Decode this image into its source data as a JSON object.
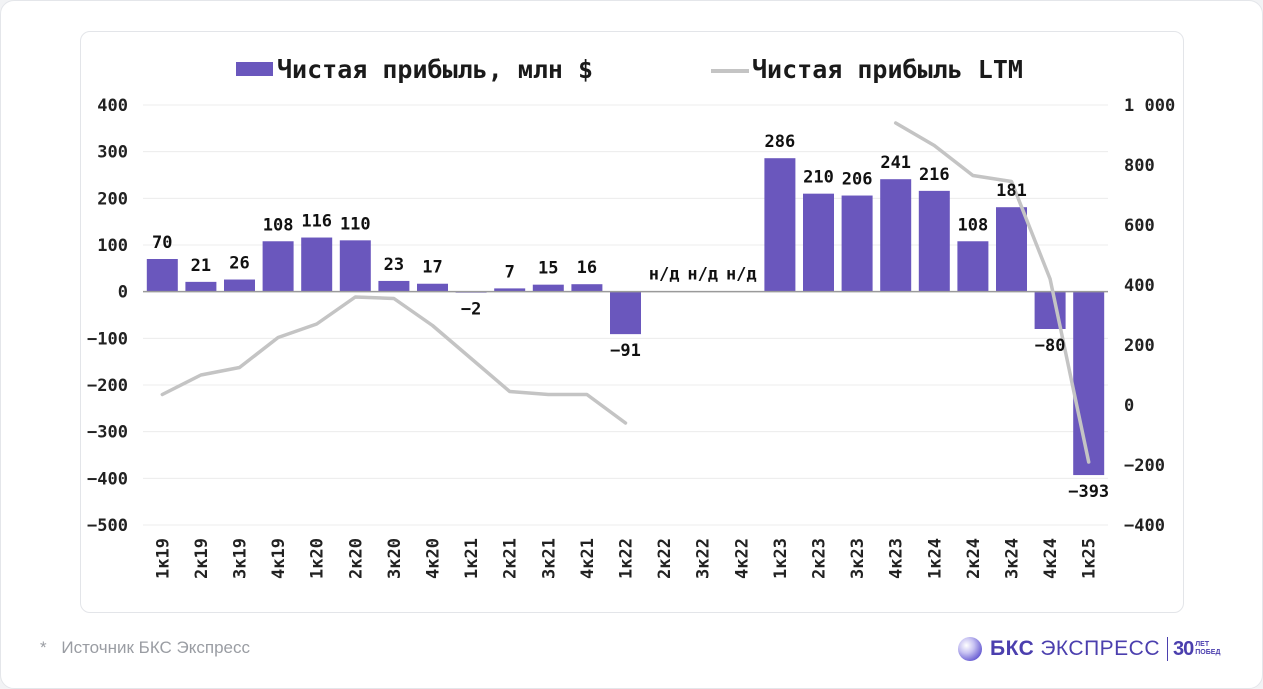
{
  "chart_data": {
    "type": "bar",
    "categories": [
      "1к19",
      "2к19",
      "3к19",
      "4к19",
      "1к20",
      "2к20",
      "3к20",
      "4к20",
      "1к21",
      "2к21",
      "3к21",
      "4к21",
      "1к22",
      "2к22",
      "3к22",
      "4к22",
      "1к23",
      "2к23",
      "3к23",
      "4к23",
      "1к24",
      "2к24",
      "3к24",
      "4к24",
      "1к25"
    ],
    "series": [
      {
        "name": "Чистая прибыль, млн $",
        "kind": "bar",
        "axis": "left",
        "color": "#6a57bd",
        "values": [
          70,
          21,
          26,
          108,
          116,
          110,
          23,
          17,
          -2,
          7,
          15,
          16,
          -91,
          null,
          null,
          null,
          286,
          210,
          206,
          241,
          216,
          108,
          181,
          -80,
          -393
        ],
        "labels": [
          "70",
          "21",
          "26",
          "108",
          "116",
          "110",
          "23",
          "17",
          "-2",
          "7",
          "15",
          "16",
          "-91",
          "н/д",
          "н/д",
          "н/д",
          "286",
          "210",
          "206",
          "241",
          "216",
          "108",
          "181",
          "-80",
          "-393"
        ]
      },
      {
        "name": "Чистая прибыль LTM",
        "kind": "line",
        "axis": "right",
        "color": "#c4c4c4",
        "values": [
          35,
          100,
          125,
          225,
          270,
          360,
          355,
          265,
          155,
          45,
          35,
          35,
          -60,
          null,
          null,
          null,
          null,
          null,
          null,
          940,
          865,
          765,
          745,
          420,
          -190
        ]
      }
    ],
    "left_axis": {
      "ylim": [
        -500,
        400
      ],
      "ticks": [
        400,
        300,
        200,
        100,
        0,
        -100,
        -200,
        -300,
        -400,
        -500
      ],
      "tick_labels": [
        "400",
        "300",
        "200",
        "100",
        "0",
        "−100",
        "−200",
        "−300",
        "−400",
        "−500"
      ]
    },
    "right_axis": {
      "ylim": [
        -400,
        1000
      ],
      "ticks": [
        1000,
        800,
        600,
        400,
        200,
        0,
        -200,
        -400
      ],
      "tick_labels": [
        "1 000",
        "800",
        "600",
        "400",
        "200",
        "0",
        "−200",
        "−400"
      ]
    },
    "legend_position": "top",
    "grid": true
  },
  "legend": {
    "bar_label": "Чистая прибыль, млн $",
    "line_label": "Чистая прибыль LTM"
  },
  "footer": {
    "star": "*",
    "source": "Источник БКС Экспресс"
  },
  "brand": {
    "name": "БКС",
    "product": "ЭКСПРЕСС",
    "years": "30",
    "years_top": "ЛЕТ",
    "years_bottom": "ПОБЕД",
    "accent": "#4b3fae"
  }
}
